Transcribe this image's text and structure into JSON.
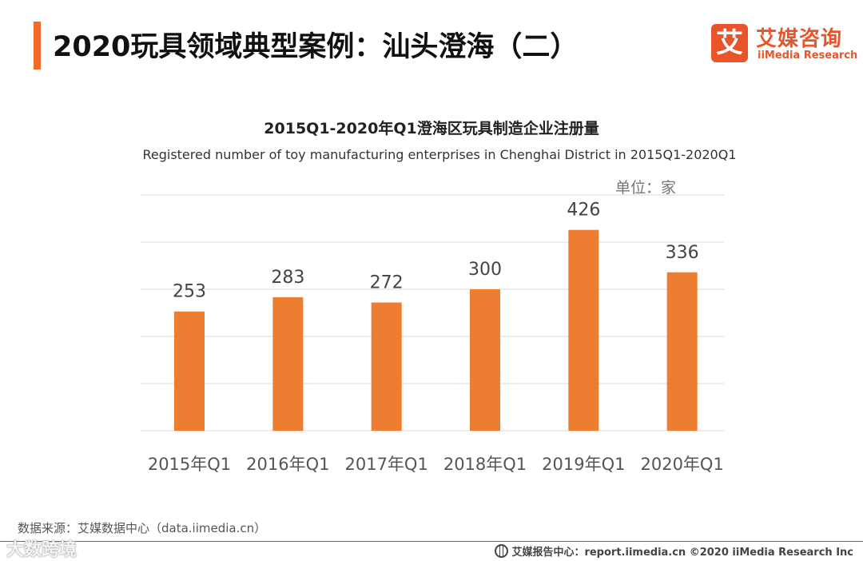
{
  "header": {
    "title": "2020玩具领域典型案例：汕头澄海（二）",
    "logo_cn": "艾媒咨询",
    "logo_en": "iiMedia Research",
    "logo_mark": "艾",
    "accent_color": "#f26b2b"
  },
  "chart_data": {
    "type": "bar",
    "title": "2015Q1-2020年Q1澄海区玩具制造企业注册量",
    "subtitle": "Registered number of toy manufacturing enterprises in Chenghai District in 2015Q1-2020Q1",
    "unit": "单位：家",
    "categories": [
      "2015年Q1",
      "2016年Q1",
      "2017年Q1",
      "2018年Q1",
      "2019年Q1",
      "2020年Q1"
    ],
    "values": [
      253,
      283,
      272,
      300,
      426,
      336
    ],
    "ylim": [
      0,
      500
    ],
    "grid": true,
    "bar_color": "#ed7d31",
    "xlabel": "",
    "ylabel": ""
  },
  "footer": {
    "source": "数据来源：艾媒数据中心（data.iimedia.cn）",
    "report": "艾媒报告中心：report.iimedia.cn ©2020  iiMedia Research  Inc",
    "watermark": "大数跨境"
  }
}
